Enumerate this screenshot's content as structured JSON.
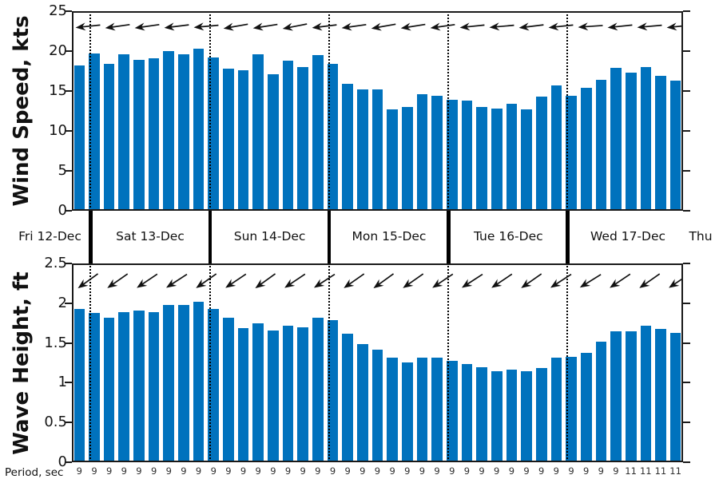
{
  "figure": {
    "bar_color": "#0072BD",
    "arrow_color": "#111111",
    "axis_color": "#1a1a1a",
    "background": "#ffffff"
  },
  "timeline": {
    "days": [
      {
        "label": "Fri 12-Dec",
        "bars": 1
      },
      {
        "label": "Sat 13-Dec",
        "bars": 8
      },
      {
        "label": "Sun 14-Dec",
        "bars": 8
      },
      {
        "label": "Mon 15-Dec",
        "bars": 8
      },
      {
        "label": "Tue 16-Dec",
        "bars": 8
      },
      {
        "label": "Wed 17-Dec",
        "bars": 8
      }
    ],
    "next_day_label": "Thu",
    "n_bars": 41,
    "bar_interval_hours": 3
  },
  "chart_data": [
    {
      "type": "bar",
      "panel": "wind",
      "ylabel": "Wind Speed, kts",
      "ylim": [
        0,
        25
      ],
      "yticks": [
        "0",
        "5",
        "10",
        "15",
        "20",
        "25"
      ],
      "grid": false,
      "values": [
        18.2,
        19.7,
        18.4,
        19.6,
        18.9,
        19.1,
        20.0,
        19.6,
        20.3,
        19.2,
        17.8,
        17.6,
        19.6,
        17.1,
        18.8,
        18.0,
        19.5,
        18.4,
        15.9,
        15.2,
        15.2,
        12.7,
        13.0,
        14.6,
        14.4,
        13.9,
        13.8,
        13.0,
        12.8,
        13.4,
        12.7,
        14.3,
        15.7,
        14.4,
        15.4,
        16.4,
        17.9,
        17.3,
        18.0,
        16.9,
        16.3
      ],
      "arrows": {
        "meaning": "wind direction, pointing left (toward west) with slight downward tilt",
        "angles_deg_below_horizontal": [
          6,
          8,
          8,
          7,
          5,
          10,
          9,
          11,
          7,
          8,
          10,
          9,
          8,
          6,
          5,
          7,
          6,
          4,
          6,
          5,
          6
        ]
      }
    },
    {
      "type": "bar",
      "panel": "wave",
      "ylabel": "Wave Height, ft",
      "ylim": [
        0,
        2.5
      ],
      "yticks": [
        "0",
        "0.5",
        "1",
        "1.5",
        "2",
        "2.5"
      ],
      "grid": false,
      "values": [
        1.93,
        1.88,
        1.82,
        1.89,
        1.91,
        1.89,
        1.98,
        1.98,
        2.02,
        1.93,
        1.82,
        1.69,
        1.75,
        1.66,
        1.72,
        1.7,
        1.82,
        1.79,
        1.62,
        1.49,
        1.42,
        1.32,
        1.26,
        1.32,
        1.32,
        1.28,
        1.24,
        1.19,
        1.14,
        1.16,
        1.14,
        1.18,
        1.32,
        1.33,
        1.38,
        1.52,
        1.65,
        1.65,
        1.72,
        1.68,
        1.63
      ],
      "arrows": {
        "meaning": "wave direction, pointing down-left (toward southwest)",
        "angles_deg_below_horizontal": [
          36,
          35,
          34,
          33,
          35,
          34,
          36,
          34,
          33,
          35,
          36,
          35,
          34,
          33,
          34,
          35,
          33,
          32,
          34,
          35,
          34
        ]
      }
    }
  ],
  "period_row": {
    "label": "Period, sec",
    "values": [
      9,
      9,
      9,
      9,
      9,
      9,
      9,
      9,
      9,
      9,
      9,
      9,
      9,
      9,
      9,
      9,
      9,
      9,
      9,
      9,
      9,
      9,
      9,
      9,
      9,
      9,
      9,
      9,
      9,
      9,
      9,
      9,
      9,
      9,
      9,
      9,
      9,
      11,
      11,
      11,
      11
    ]
  }
}
